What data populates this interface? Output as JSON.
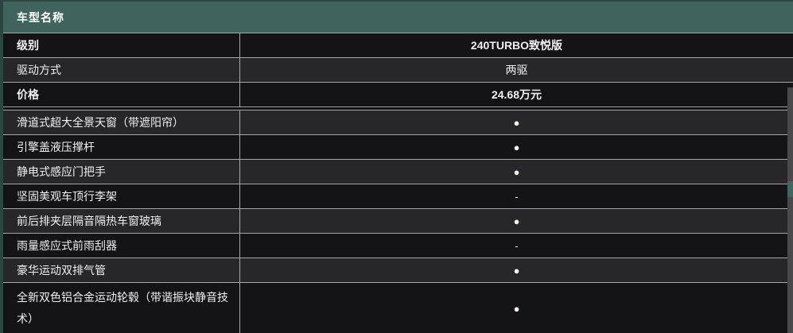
{
  "table": {
    "header": {
      "title": "车型名称"
    },
    "basic_rows": [
      {
        "label": "级别",
        "value": "240TURBO致悦版"
      },
      {
        "label": "驱动方式",
        "value": "两驱"
      },
      {
        "label": "价格",
        "value": "24.68万元"
      }
    ],
    "feature_rows": [
      {
        "label": "滑道式超大全景天窗（带遮阳帘）",
        "value": "●"
      },
      {
        "label": "引擎盖液压撑杆",
        "value": "●"
      },
      {
        "label": "静电式感应门把手",
        "value": "●"
      },
      {
        "label": "坚固美观车顶行李架",
        "value": "-"
      },
      {
        "label": "前后排夹层隔音隔热车窗玻璃",
        "value": "●"
      },
      {
        "label": "雨量感应式前雨刮器",
        "value": "-"
      },
      {
        "label": "豪华运动双排气管",
        "value": "●"
      },
      {
        "label": "全新双色铝合金运动轮毂（带谐振块静音技术）",
        "value": "●"
      }
    ],
    "colors": {
      "header_bg": "#40645C",
      "header_top_border": "#2C4840",
      "row_dark": "#141417",
      "row_light": "#27272A",
      "divider": "#A6A6A6",
      "left_border": "#2A463F",
      "text": "#F0F0F0",
      "dot": "#F5F1E8",
      "scrollbar": "#49494C",
      "scrollbar_accent": "#3F665F"
    }
  }
}
